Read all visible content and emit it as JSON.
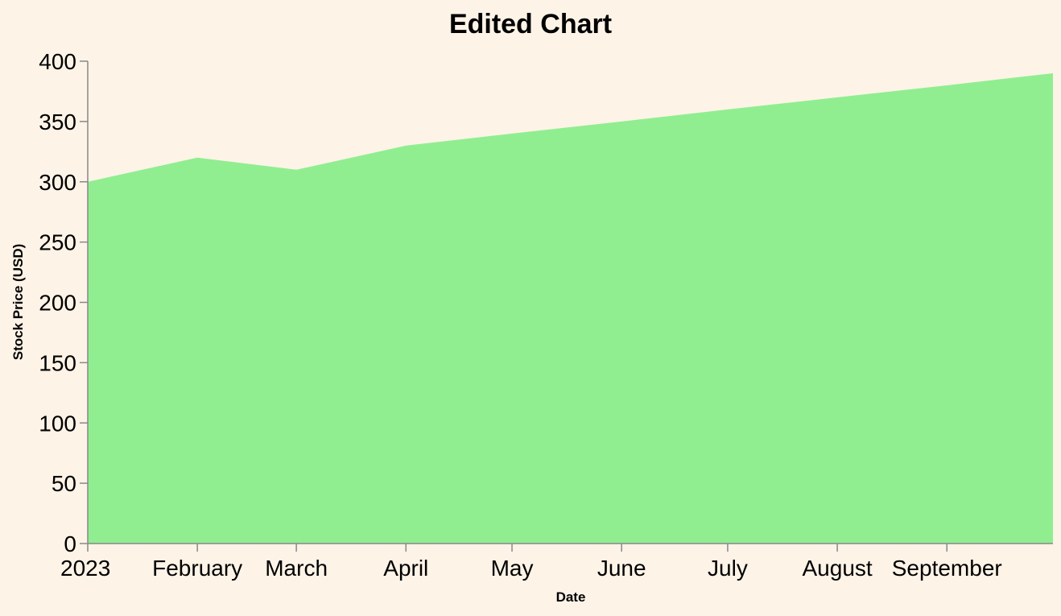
{
  "chart_data": {
    "type": "area",
    "title": "Edited Chart",
    "xlabel": "Date",
    "ylabel": "Stock Price (USD)",
    "x": [
      "2023-01-01",
      "2023-02-01",
      "2023-03-01",
      "2023-04-01",
      "2023-05-01",
      "2023-06-01",
      "2023-07-01",
      "2023-08-01",
      "2023-09-01",
      "2023-10-01"
    ],
    "values": [
      300,
      320,
      310,
      330,
      340,
      350,
      360,
      370,
      380,
      390
    ],
    "x_ticks": [
      {
        "date": "2023-01-01",
        "label": "2023"
      },
      {
        "date": "2023-02-01",
        "label": "February"
      },
      {
        "date": "2023-03-01",
        "label": "March"
      },
      {
        "date": "2023-04-01",
        "label": "April"
      },
      {
        "date": "2023-05-01",
        "label": "May"
      },
      {
        "date": "2023-06-01",
        "label": "June"
      },
      {
        "date": "2023-07-01",
        "label": "July"
      },
      {
        "date": "2023-08-01",
        "label": "August"
      },
      {
        "date": "2023-09-01",
        "label": "September"
      }
    ],
    "y_ticks": [
      0,
      50,
      100,
      150,
      200,
      250,
      300,
      350,
      400
    ],
    "ylim": [
      0,
      400
    ],
    "xlim": [
      "2023-01-01",
      "2023-10-01"
    ],
    "grid": false,
    "legend": "none",
    "colors": {
      "area": "#90ee90",
      "background": "#fdf3e7",
      "axis": "#888888"
    }
  }
}
